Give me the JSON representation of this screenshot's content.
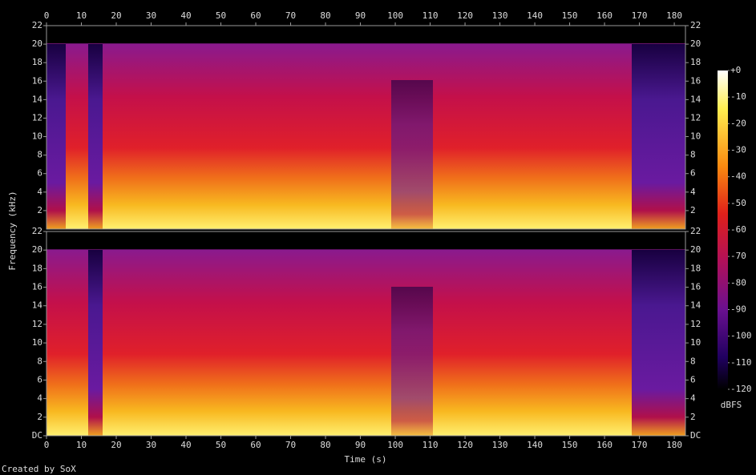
{
  "chart_data": {
    "type": "spectrogram",
    "x_label": "Time (s)",
    "y_label": "Frequency (kHz)",
    "footer": "Created by SoX",
    "xlim": [
      0,
      183.2
    ],
    "xticks": [
      0,
      10,
      20,
      30,
      40,
      50,
      60,
      70,
      80,
      90,
      100,
      110,
      120,
      130,
      140,
      150,
      160,
      170,
      180
    ],
    "channels": [
      {
        "ylim": [
          0,
          22
        ],
        "yticks": [
          2,
          4,
          6,
          8,
          10,
          12,
          14,
          16,
          18,
          20,
          22
        ]
      },
      {
        "ylim": [
          0,
          22
        ],
        "yticks": [
          {
            "value": 0,
            "label": "DC"
          },
          2,
          4,
          6,
          8,
          10,
          12,
          14,
          16,
          18,
          20,
          22
        ]
      }
    ],
    "colorbar": {
      "label": "dBFS",
      "lim": [
        -120,
        0
      ],
      "ticks": [
        {
          "value": 0,
          "label": "+0"
        },
        -10,
        -20,
        -30,
        -40,
        -50,
        -60,
        -70,
        -80,
        -90,
        -100,
        -110,
        -120
      ]
    }
  }
}
